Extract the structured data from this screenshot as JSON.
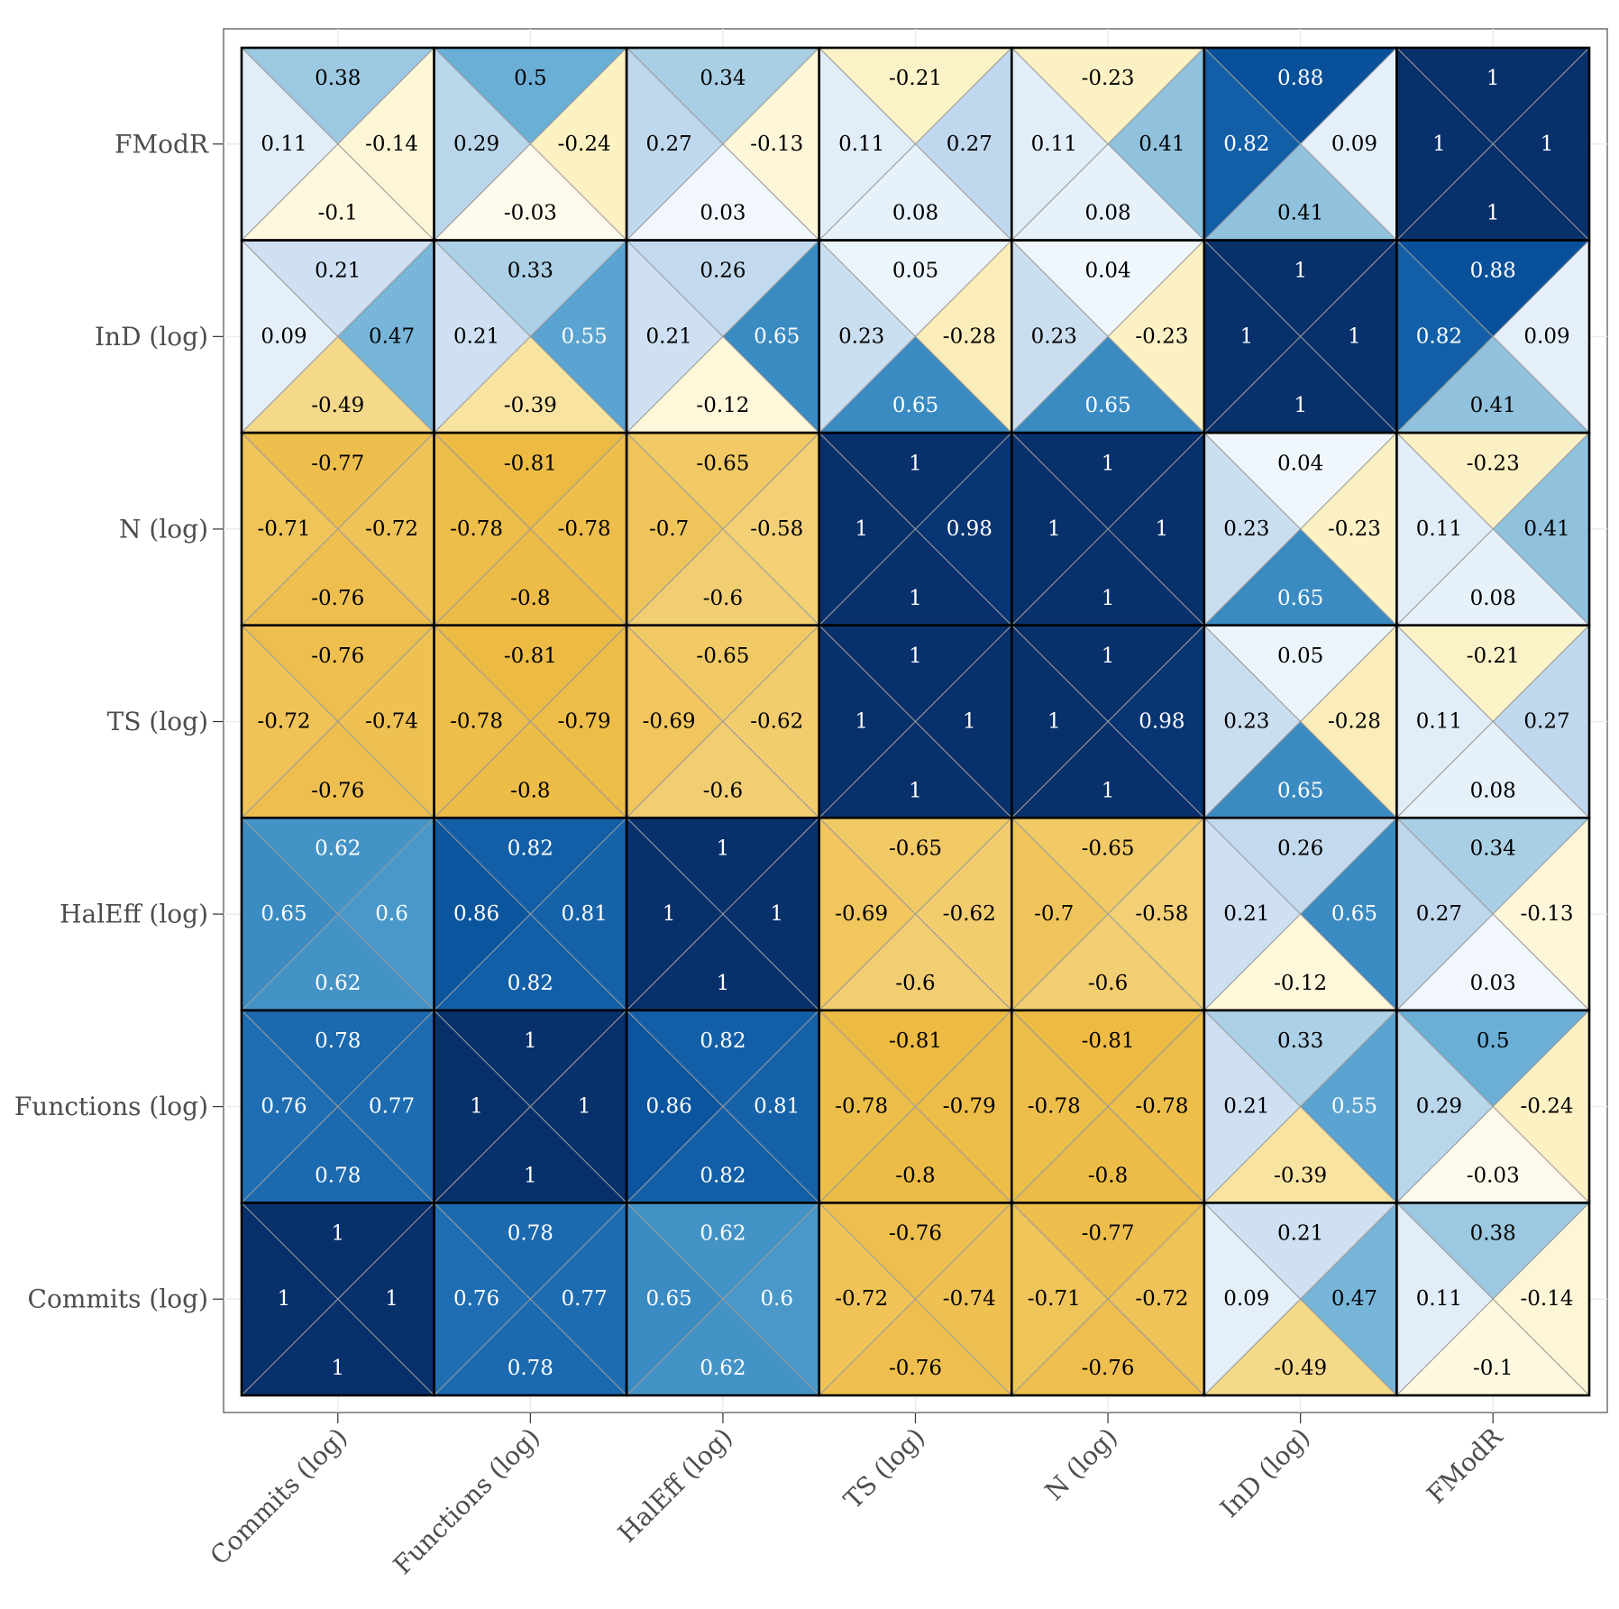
{
  "chart_data": {
    "type": "heatmap",
    "title": "",
    "xlabel": "",
    "ylabel": "",
    "grid": true,
    "legend": "none",
    "columns": [
      "Commits (log)",
      "Functions (log)",
      "HalEff (log)",
      "TS (log)",
      "N (log)",
      "InD (log)",
      "FModR"
    ],
    "rows": [
      "FModR",
      "InD (log)",
      "N (log)",
      "TS (log)",
      "HalEff (log)",
      "Functions (log)",
      "Commits (log)"
    ],
    "triangle_order": [
      "top",
      "left",
      "right",
      "bottom"
    ],
    "color_scale": {
      "negative": "#e8ac20",
      "zero": "#ffffff",
      "positive": "#08306b"
    },
    "values": [
      [
        [
          0.38,
          0.11,
          -0.14,
          -0.1
        ],
        [
          0.5,
          0.29,
          -0.24,
          -0.03
        ],
        [
          0.34,
          0.27,
          -0.13,
          0.03
        ],
        [
          -0.21,
          0.11,
          0.27,
          0.08
        ],
        [
          -0.23,
          0.11,
          0.41,
          0.08
        ],
        [
          0.88,
          0.82,
          0.09,
          0.41
        ],
        [
          1,
          1,
          1,
          1
        ]
      ],
      [
        [
          0.21,
          0.09,
          0.47,
          -0.49
        ],
        [
          0.33,
          0.21,
          0.55,
          -0.39
        ],
        [
          0.26,
          0.21,
          0.65,
          -0.12
        ],
        [
          0.05,
          0.23,
          -0.28,
          0.65
        ],
        [
          0.04,
          0.23,
          -0.23,
          0.65
        ],
        [
          1,
          1,
          1,
          1
        ],
        [
          0.88,
          0.82,
          0.09,
          0.41
        ]
      ],
      [
        [
          -0.77,
          -0.71,
          -0.72,
          -0.76
        ],
        [
          -0.81,
          -0.78,
          -0.78,
          -0.8
        ],
        [
          -0.65,
          -0.7,
          -0.58,
          -0.6
        ],
        [
          1,
          1,
          0.98,
          1
        ],
        [
          1,
          1,
          1,
          1
        ],
        [
          0.04,
          0.23,
          -0.23,
          0.65
        ],
        [
          -0.23,
          0.11,
          0.41,
          0.08
        ]
      ],
      [
        [
          -0.76,
          -0.72,
          -0.74,
          -0.76
        ],
        [
          -0.81,
          -0.78,
          -0.79,
          -0.8
        ],
        [
          -0.65,
          -0.69,
          -0.62,
          -0.6
        ],
        [
          1,
          1,
          1,
          1
        ],
        [
          1,
          1,
          0.98,
          1
        ],
        [
          0.05,
          0.23,
          -0.28,
          0.65
        ],
        [
          -0.21,
          0.11,
          0.27,
          0.08
        ]
      ],
      [
        [
          0.62,
          0.65,
          0.6,
          0.62
        ],
        [
          0.82,
          0.86,
          0.81,
          0.82
        ],
        [
          1,
          1,
          1,
          1
        ],
        [
          -0.65,
          -0.69,
          -0.62,
          -0.6
        ],
        [
          -0.65,
          -0.7,
          -0.58,
          -0.6
        ],
        [
          0.26,
          0.21,
          0.65,
          -0.12
        ],
        [
          0.34,
          0.27,
          -0.13,
          0.03
        ]
      ],
      [
        [
          0.78,
          0.76,
          0.77,
          0.78
        ],
        [
          1,
          1,
          1,
          1
        ],
        [
          0.82,
          0.86,
          0.81,
          0.82
        ],
        [
          -0.81,
          -0.78,
          -0.79,
          -0.8
        ],
        [
          -0.81,
          -0.78,
          -0.78,
          -0.8
        ],
        [
          0.33,
          0.21,
          0.55,
          -0.39
        ],
        [
          0.5,
          0.29,
          -0.24,
          -0.03
        ]
      ],
      [
        [
          1,
          1,
          1,
          1
        ],
        [
          0.78,
          0.76,
          0.77,
          0.78
        ],
        [
          0.62,
          0.65,
          0.6,
          0.62
        ],
        [
          -0.76,
          -0.72,
          -0.74,
          -0.76
        ],
        [
          -0.77,
          -0.71,
          -0.72,
          -0.76
        ],
        [
          0.21,
          0.09,
          0.47,
          -0.49
        ],
        [
          0.38,
          0.11,
          -0.14,
          -0.1
        ]
      ]
    ]
  }
}
